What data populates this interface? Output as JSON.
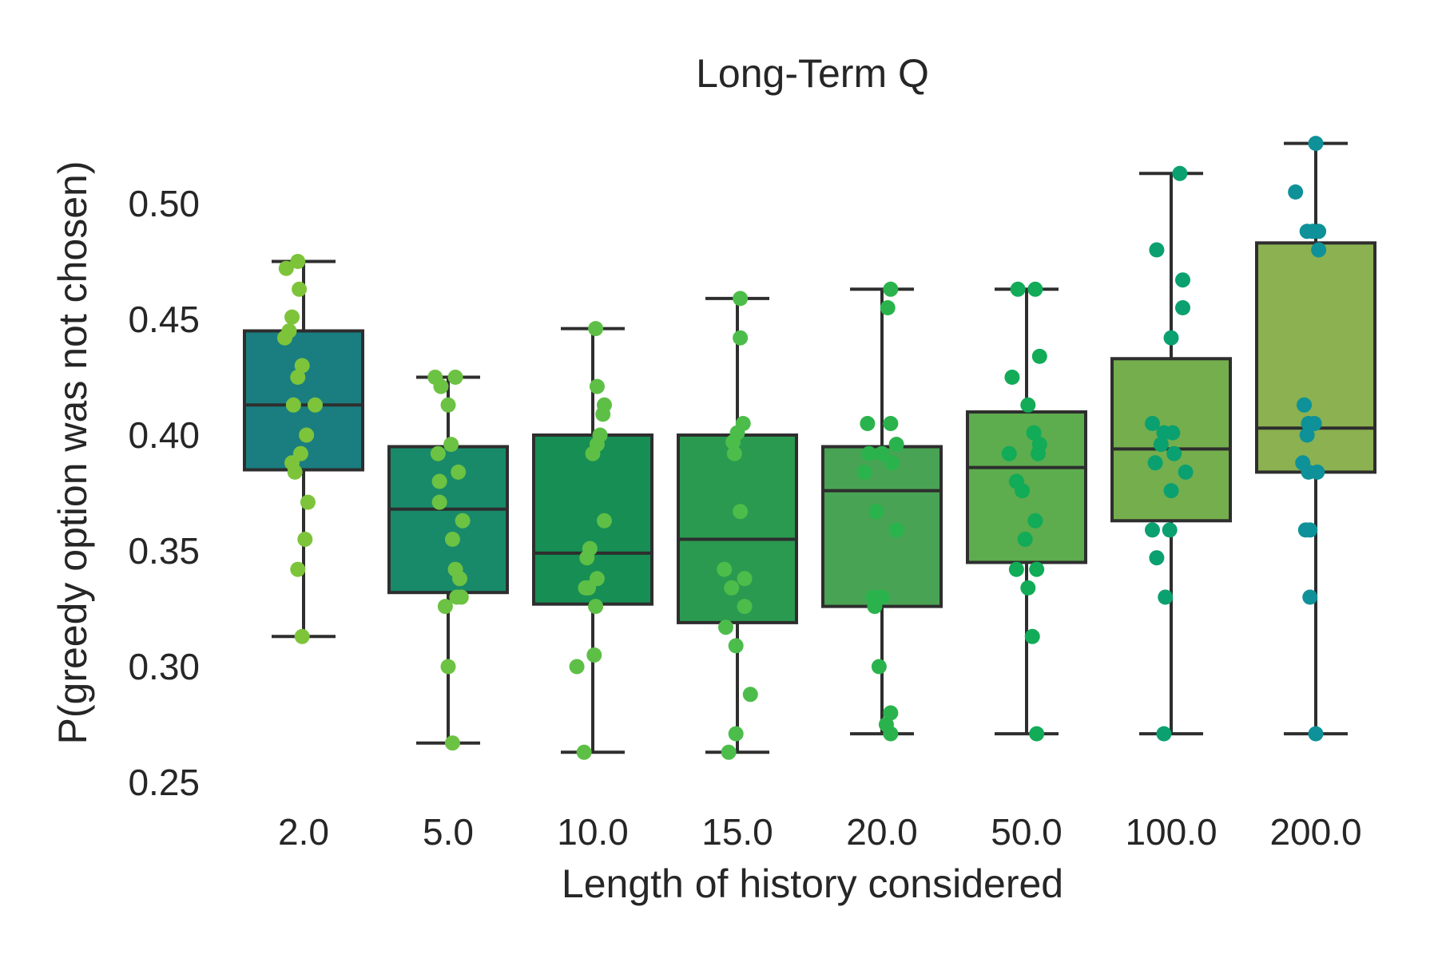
{
  "chart_data": {
    "type": "box",
    "title": "Long-Term Q",
    "xlabel": "Length of history considered",
    "ylabel": "P(greedy option was not chosen)",
    "ylim": [
      0.24,
      0.535
    ],
    "yticks": [
      "0.25",
      "0.30",
      "0.35",
      "0.40",
      "0.45",
      "0.50"
    ],
    "yticks_values": [
      0.25,
      0.3,
      0.35,
      0.4,
      0.45,
      0.5
    ],
    "grid": false,
    "categories": [
      "2.0",
      "5.0",
      "10.0",
      "15.0",
      "20.0",
      "50.0",
      "100.0",
      "200.0"
    ],
    "box_colors": [
      "#1a7e80",
      "#188a6a",
      "#168e54",
      "#2a9a50",
      "#49a354",
      "#5dac4e",
      "#75ae4d",
      "#8bb150"
    ],
    "point_colors": [
      "#7dc43a",
      "#6cc242",
      "#5ebf46",
      "#4cbd4a",
      "#2ab34c",
      "#12ab58",
      "#0ba070",
      "#0e9198"
    ],
    "outline_color": "#2e2e2e",
    "boxes": [
      {
        "whisker_low": 0.313,
        "q1": 0.385,
        "median": 0.413,
        "q3": 0.445,
        "whisker_high": 0.475
      },
      {
        "whisker_low": 0.267,
        "q1": 0.332,
        "median": 0.368,
        "q3": 0.395,
        "whisker_high": 0.425
      },
      {
        "whisker_low": 0.263,
        "q1": 0.327,
        "median": 0.349,
        "q3": 0.4,
        "whisker_high": 0.446
      },
      {
        "whisker_low": 0.263,
        "q1": 0.319,
        "median": 0.355,
        "q3": 0.4,
        "whisker_high": 0.459
      },
      {
        "whisker_low": 0.271,
        "q1": 0.326,
        "median": 0.376,
        "q3": 0.395,
        "whisker_high": 0.463
      },
      {
        "whisker_low": 0.271,
        "q1": 0.345,
        "median": 0.386,
        "q3": 0.41,
        "whisker_high": 0.463
      },
      {
        "whisker_low": 0.271,
        "q1": 0.363,
        "median": 0.394,
        "q3": 0.433,
        "whisker_high": 0.513
      },
      {
        "whisker_low": 0.271,
        "q1": 0.384,
        "median": 0.403,
        "q3": 0.483,
        "whisker_high": 0.526
      }
    ],
    "points": [
      [
        {
          "y": 0.475,
          "dx": -0.04
        },
        {
          "y": 0.472,
          "dx": -0.12
        },
        {
          "y": 0.463,
          "dx": -0.03
        },
        {
          "y": 0.451,
          "dx": -0.08
        },
        {
          "y": 0.445,
          "dx": -0.1
        },
        {
          "y": 0.442,
          "dx": -0.13
        },
        {
          "y": 0.43,
          "dx": -0.01
        },
        {
          "y": 0.425,
          "dx": -0.04
        },
        {
          "y": 0.413,
          "dx": 0.08
        },
        {
          "y": 0.413,
          "dx": -0.07
        },
        {
          "y": 0.4,
          "dx": 0.02
        },
        {
          "y": 0.392,
          "dx": -0.02
        },
        {
          "y": 0.388,
          "dx": -0.08
        },
        {
          "y": 0.384,
          "dx": -0.06
        },
        {
          "y": 0.371,
          "dx": 0.03
        },
        {
          "y": 0.355,
          "dx": 0.01
        },
        {
          "y": 0.342,
          "dx": -0.04
        },
        {
          "y": 0.313,
          "dx": -0.01
        }
      ],
      [
        {
          "y": 0.425,
          "dx": -0.09
        },
        {
          "y": 0.425,
          "dx": 0.05
        },
        {
          "y": 0.421,
          "dx": -0.05
        },
        {
          "y": 0.413,
          "dx": 0.0
        },
        {
          "y": 0.396,
          "dx": 0.02
        },
        {
          "y": 0.392,
          "dx": -0.07
        },
        {
          "y": 0.384,
          "dx": 0.07
        },
        {
          "y": 0.38,
          "dx": -0.06
        },
        {
          "y": 0.371,
          "dx": -0.06
        },
        {
          "y": 0.363,
          "dx": 0.1
        },
        {
          "y": 0.355,
          "dx": 0.03
        },
        {
          "y": 0.342,
          "dx": 0.05
        },
        {
          "y": 0.338,
          "dx": 0.08
        },
        {
          "y": 0.33,
          "dx": 0.06
        },
        {
          "y": 0.33,
          "dx": 0.09
        },
        {
          "y": 0.326,
          "dx": -0.02
        },
        {
          "y": 0.3,
          "dx": 0.0
        },
        {
          "y": 0.267,
          "dx": 0.03
        }
      ],
      [
        {
          "y": 0.446,
          "dx": 0.02
        },
        {
          "y": 0.421,
          "dx": 0.03
        },
        {
          "y": 0.413,
          "dx": 0.08
        },
        {
          "y": 0.409,
          "dx": 0.07
        },
        {
          "y": 0.4,
          "dx": 0.05
        },
        {
          "y": 0.396,
          "dx": 0.03
        },
        {
          "y": 0.392,
          "dx": 0.0
        },
        {
          "y": 0.363,
          "dx": 0.08
        },
        {
          "y": 0.351,
          "dx": -0.02
        },
        {
          "y": 0.347,
          "dx": -0.04
        },
        {
          "y": 0.338,
          "dx": 0.03
        },
        {
          "y": 0.334,
          "dx": -0.05
        },
        {
          "y": 0.334,
          "dx": -0.03
        },
        {
          "y": 0.326,
          "dx": 0.02
        },
        {
          "y": 0.305,
          "dx": 0.01
        },
        {
          "y": 0.3,
          "dx": -0.11
        },
        {
          "y": 0.263,
          "dx": -0.06
        }
      ],
      [
        {
          "y": 0.459,
          "dx": 0.02
        },
        {
          "y": 0.442,
          "dx": 0.02
        },
        {
          "y": 0.405,
          "dx": 0.04
        },
        {
          "y": 0.401,
          "dx": 0.0
        },
        {
          "y": 0.397,
          "dx": -0.03
        },
        {
          "y": 0.392,
          "dx": -0.02
        },
        {
          "y": 0.367,
          "dx": 0.02
        },
        {
          "y": 0.342,
          "dx": -0.09
        },
        {
          "y": 0.338,
          "dx": 0.05
        },
        {
          "y": 0.334,
          "dx": -0.04
        },
        {
          "y": 0.326,
          "dx": 0.05
        },
        {
          "y": 0.317,
          "dx": -0.08
        },
        {
          "y": 0.309,
          "dx": -0.01
        },
        {
          "y": 0.288,
          "dx": 0.09
        },
        {
          "y": 0.271,
          "dx": -0.01
        },
        {
          "y": 0.263,
          "dx": -0.06
        }
      ],
      [
        {
          "y": 0.463,
          "dx": 0.06
        },
        {
          "y": 0.455,
          "dx": 0.04
        },
        {
          "y": 0.405,
          "dx": -0.1
        },
        {
          "y": 0.405,
          "dx": 0.06
        },
        {
          "y": 0.396,
          "dx": 0.1
        },
        {
          "y": 0.392,
          "dx": 0.0
        },
        {
          "y": 0.392,
          "dx": -0.09
        },
        {
          "y": 0.388,
          "dx": 0.07
        },
        {
          "y": 0.384,
          "dx": -0.12
        },
        {
          "y": 0.367,
          "dx": -0.04
        },
        {
          "y": 0.359,
          "dx": 0.1
        },
        {
          "y": 0.33,
          "dx": -0.06
        },
        {
          "y": 0.33,
          "dx": 0.0
        },
        {
          "y": 0.326,
          "dx": -0.05
        },
        {
          "y": 0.3,
          "dx": -0.02
        },
        {
          "y": 0.28,
          "dx": 0.06
        },
        {
          "y": 0.275,
          "dx": 0.03
        },
        {
          "y": 0.271,
          "dx": 0.06
        }
      ],
      [
        {
          "y": 0.463,
          "dx": -0.06
        },
        {
          "y": 0.463,
          "dx": 0.06
        },
        {
          "y": 0.434,
          "dx": 0.09
        },
        {
          "y": 0.425,
          "dx": -0.1
        },
        {
          "y": 0.413,
          "dx": 0.01
        },
        {
          "y": 0.401,
          "dx": 0.05
        },
        {
          "y": 0.396,
          "dx": 0.09
        },
        {
          "y": 0.392,
          "dx": -0.12
        },
        {
          "y": 0.392,
          "dx": 0.08
        },
        {
          "y": 0.38,
          "dx": -0.07
        },
        {
          "y": 0.376,
          "dx": -0.03
        },
        {
          "y": 0.363,
          "dx": 0.06
        },
        {
          "y": 0.355,
          "dx": -0.01
        },
        {
          "y": 0.342,
          "dx": -0.07
        },
        {
          "y": 0.342,
          "dx": 0.07
        },
        {
          "y": 0.334,
          "dx": 0.01
        },
        {
          "y": 0.313,
          "dx": 0.04
        },
        {
          "y": 0.271,
          "dx": 0.07
        }
      ],
      [
        {
          "y": 0.513,
          "dx": 0.06
        },
        {
          "y": 0.48,
          "dx": -0.1
        },
        {
          "y": 0.467,
          "dx": 0.08
        },
        {
          "y": 0.455,
          "dx": 0.08
        },
        {
          "y": 0.442,
          "dx": 0.0
        },
        {
          "y": 0.405,
          "dx": -0.13
        },
        {
          "y": 0.401,
          "dx": -0.05
        },
        {
          "y": 0.401,
          "dx": 0.01
        },
        {
          "y": 0.396,
          "dx": -0.07
        },
        {
          "y": 0.392,
          "dx": 0.02
        },
        {
          "y": 0.388,
          "dx": -0.11
        },
        {
          "y": 0.384,
          "dx": 0.1
        },
        {
          "y": 0.376,
          "dx": 0.0
        },
        {
          "y": 0.359,
          "dx": -0.13
        },
        {
          "y": 0.359,
          "dx": -0.01
        },
        {
          "y": 0.347,
          "dx": -0.1
        },
        {
          "y": 0.33,
          "dx": -0.04
        },
        {
          "y": 0.271,
          "dx": -0.05
        }
      ],
      [
        {
          "y": 0.526,
          "dx": 0.0
        },
        {
          "y": 0.505,
          "dx": -0.14
        },
        {
          "y": 0.488,
          "dx": -0.06
        },
        {
          "y": 0.488,
          "dx": -0.02
        },
        {
          "y": 0.488,
          "dx": 0.02
        },
        {
          "y": 0.48,
          "dx": 0.02
        },
        {
          "y": 0.413,
          "dx": -0.08
        },
        {
          "y": 0.405,
          "dx": -0.05
        },
        {
          "y": 0.405,
          "dx": -0.01
        },
        {
          "y": 0.4,
          "dx": -0.06
        },
        {
          "y": 0.388,
          "dx": -0.09
        },
        {
          "y": 0.384,
          "dx": -0.05
        },
        {
          "y": 0.384,
          "dx": 0.01
        },
        {
          "y": 0.359,
          "dx": -0.07
        },
        {
          "y": 0.359,
          "dx": -0.04
        },
        {
          "y": 0.33,
          "dx": -0.04
        },
        {
          "y": 0.271,
          "dx": 0.0
        }
      ]
    ]
  }
}
